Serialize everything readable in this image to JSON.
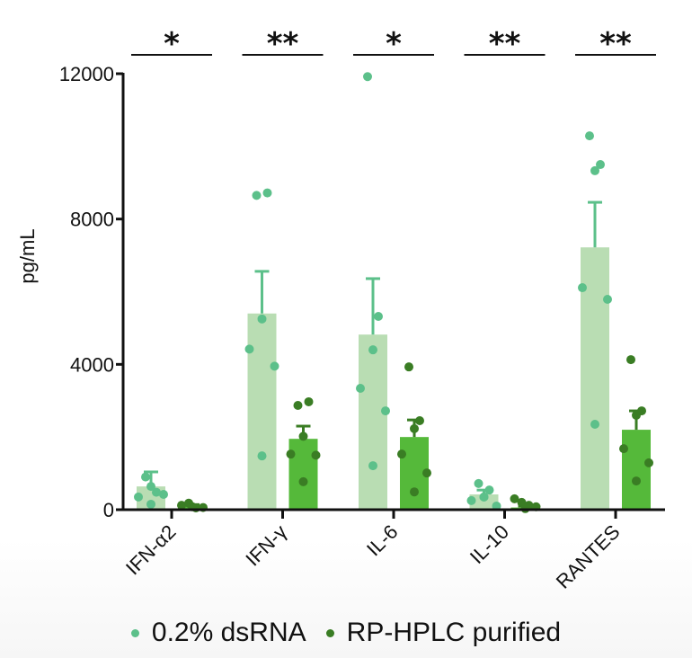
{
  "chart_data": {
    "type": "bar",
    "title": "",
    "xlabel": "",
    "ylabel": "pg/mL",
    "ylim": [
      0,
      12000
    ],
    "yticks": [
      0,
      4000,
      8000,
      12000
    ],
    "ytick_labels": [
      "0",
      "4000",
      "8000",
      "12000"
    ],
    "grid": false,
    "legend_position": "bottom",
    "categories": [
      "IFN-α2",
      "IFN-γ",
      "IL-6",
      "IL-10",
      "RANTES"
    ],
    "significance": [
      "*",
      "**",
      "*",
      "**",
      "**"
    ],
    "series": [
      {
        "name": "0.2% dsRNA",
        "bar_color": "#b9ddb3",
        "point_color": "#5cc08a",
        "values": [
          640,
          5400,
          4820,
          420,
          7220
        ],
        "error_upper": [
          1040,
          6560,
          6360,
          540,
          8460
        ],
        "points": [
          [
            900,
            480,
            640,
            350,
            420,
            150
          ],
          [
            8650,
            8720,
            5250,
            4420,
            3950,
            1480
          ],
          [
            11920,
            5320,
            4400,
            3340,
            2720,
            1210
          ],
          [
            720,
            540,
            350,
            250,
            100,
            350
          ],
          [
            10290,
            9500,
            9330,
            6110,
            5790,
            2350
          ]
        ]
      },
      {
        "name": "RP-HPLC purified",
        "bar_color": "#55b93a",
        "point_color": "#3a7d24",
        "values": [
          100,
          1950,
          2000,
          60,
          2200
        ],
        "error_upper": [
          140,
          2300,
          2470,
          100,
          2720
        ],
        "points": [
          [
            120,
            180,
            50,
            60,
            80
          ],
          [
            2870,
            2970,
            2020,
            1530,
            1500,
            770
          ],
          [
            3930,
            2450,
            2230,
            1530,
            1010,
            490
          ],
          [
            300,
            200,
            120,
            80,
            30
          ],
          [
            4130,
            2720,
            2600,
            1680,
            1290,
            790
          ]
        ]
      }
    ]
  }
}
